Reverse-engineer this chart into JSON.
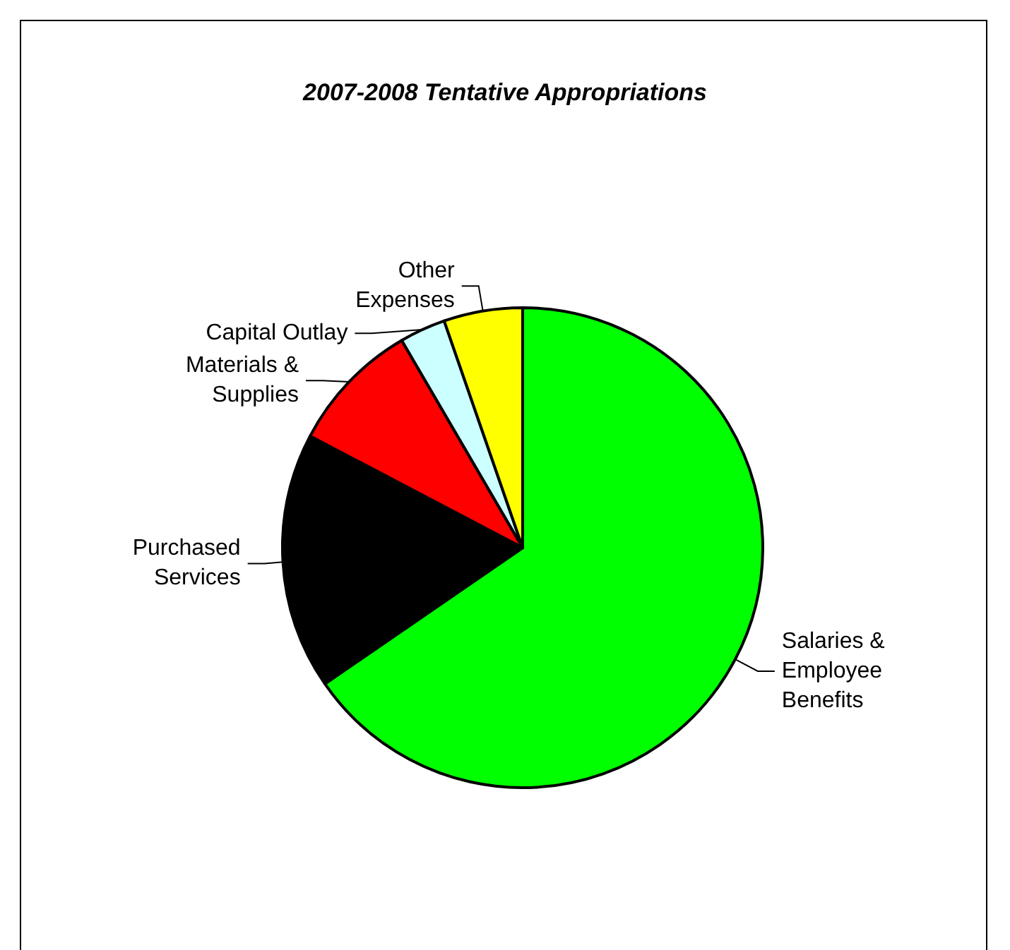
{
  "chart_data": {
    "type": "pie",
    "title": "2007-2008 Tentative Appropriations",
    "categories": [
      "Salaries &\nEmployee\nBenefits",
      "Purchased\nServices",
      "Materials &\nSupplies",
      "Capital Outlay",
      "Other\nExpenses"
    ],
    "values": [
      65.4,
      17.3,
      8.9,
      3.1,
      5.3
    ],
    "colors": [
      "#00ff00",
      "#000000",
      "#ff0000",
      "#ccffff",
      "#ffff00"
    ],
    "legend": false
  }
}
